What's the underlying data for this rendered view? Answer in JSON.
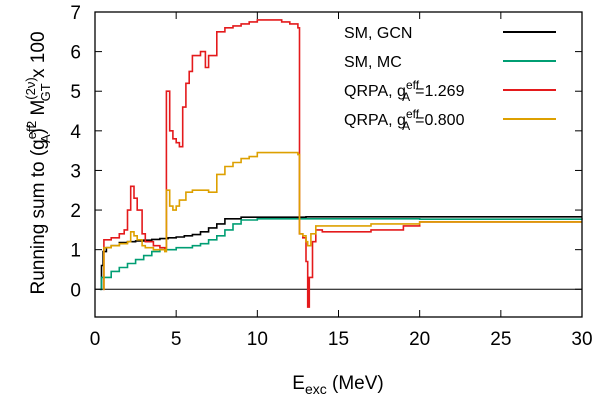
{
  "chart_data": {
    "type": "line",
    "xlabel": {
      "main": "E",
      "sub": "exc",
      "unit": " (MeV)"
    },
    "ylabel": {
      "prefix": "Running sum to (g",
      "g_sup": "eff",
      "g_sub": "A",
      "mid": ")",
      "pow": "2",
      "m_main": " M",
      "m_sup": "(2ν)",
      "m_sub": "GT",
      "suffix": " x 100"
    },
    "xlim": [
      0,
      30
    ],
    "ylim": [
      -0.7,
      7
    ],
    "xticks": [
      0,
      5,
      10,
      15,
      20,
      25,
      30
    ],
    "yticks": [
      0,
      1,
      2,
      3,
      4,
      5,
      6,
      7
    ],
    "zero_line": true,
    "legend_position": "top-right",
    "series": [
      {
        "name": "SM, GCN",
        "legend": {
          "main": "SM, GCN"
        },
        "color": "#000000",
        "points": [
          [
            0.3,
            0
          ],
          [
            0.4,
            0.6
          ],
          [
            0.5,
            0.95
          ],
          [
            0.7,
            1.05
          ],
          [
            1.0,
            1.1
          ],
          [
            1.5,
            1.18
          ],
          [
            2.0,
            1.2
          ],
          [
            2.5,
            1.22
          ],
          [
            3.0,
            1.24
          ],
          [
            3.5,
            1.26
          ],
          [
            4.0,
            1.28
          ],
          [
            4.5,
            1.3
          ],
          [
            5.0,
            1.32
          ],
          [
            5.5,
            1.35
          ],
          [
            6.0,
            1.38
          ],
          [
            6.5,
            1.45
          ],
          [
            7.0,
            1.55
          ],
          [
            7.5,
            1.65
          ],
          [
            8.0,
            1.78
          ],
          [
            9.0,
            1.82
          ],
          [
            12.5,
            1.82
          ],
          [
            13.0,
            1.83
          ],
          [
            16.0,
            1.83
          ],
          [
            20.0,
            1.83
          ],
          [
            30.0,
            1.83
          ]
        ]
      },
      {
        "name": "SM, MC",
        "legend": {
          "main": "SM, MC"
        },
        "color": "#009e73",
        "points": [
          [
            0.3,
            0
          ],
          [
            0.4,
            0.3
          ],
          [
            1.0,
            0.45
          ],
          [
            1.5,
            0.55
          ],
          [
            2.0,
            0.65
          ],
          [
            2.5,
            0.75
          ],
          [
            3.0,
            0.85
          ],
          [
            3.5,
            0.95
          ],
          [
            4.0,
            1.0
          ],
          [
            5.0,
            1.05
          ],
          [
            6.0,
            1.1
          ],
          [
            6.5,
            1.15
          ],
          [
            7.0,
            1.25
          ],
          [
            7.5,
            1.35
          ],
          [
            8.0,
            1.5
          ],
          [
            8.5,
            1.65
          ],
          [
            9.0,
            1.75
          ],
          [
            10.0,
            1.78
          ],
          [
            12.5,
            1.78
          ],
          [
            13.0,
            1.78
          ],
          [
            20.0,
            1.77
          ],
          [
            30.0,
            1.76
          ]
        ]
      },
      {
        "name": "QRPA, gAeff=1.269",
        "legend": {
          "main": "QRPA, g",
          "sup": "eff",
          "sub": "A",
          "tail": "=1.269"
        },
        "color": "#e41a1c",
        "points": [
          [
            0.5,
            0
          ],
          [
            0.55,
            1.25
          ],
          [
            1.0,
            1.3
          ],
          [
            1.5,
            1.4
          ],
          [
            1.8,
            1.5
          ],
          [
            2.0,
            2.0
          ],
          [
            2.2,
            2.6
          ],
          [
            2.4,
            2.3
          ],
          [
            2.6,
            2.0
          ],
          [
            2.9,
            1.4
          ],
          [
            3.1,
            1.2
          ],
          [
            3.6,
            1.1
          ],
          [
            4.0,
            1.05
          ],
          [
            4.3,
            1.0
          ],
          [
            4.4,
            5.0
          ],
          [
            4.6,
            4.0
          ],
          [
            4.8,
            3.8
          ],
          [
            5.0,
            3.7
          ],
          [
            5.2,
            3.6
          ],
          [
            5.4,
            4.6
          ],
          [
            5.6,
            5.2
          ],
          [
            5.8,
            5.5
          ],
          [
            6.0,
            5.9
          ],
          [
            6.5,
            6.0
          ],
          [
            6.8,
            5.6
          ],
          [
            7.0,
            5.9
          ],
          [
            7.5,
            6.5
          ],
          [
            8.0,
            6.6
          ],
          [
            8.5,
            6.65
          ],
          [
            9.0,
            6.7
          ],
          [
            9.5,
            6.75
          ],
          [
            10.0,
            6.8
          ],
          [
            10.5,
            6.8
          ],
          [
            11.0,
            6.8
          ],
          [
            11.5,
            6.75
          ],
          [
            12.0,
            6.7
          ],
          [
            12.5,
            6.6
          ],
          [
            12.6,
            1.4
          ],
          [
            12.8,
            1.3
          ],
          [
            13.0,
            0.7
          ],
          [
            13.1,
            -0.45
          ],
          [
            13.2,
            0.3
          ],
          [
            13.4,
            1.2
          ],
          [
            13.6,
            1.5
          ],
          [
            14.0,
            1.45
          ],
          [
            15.0,
            1.45
          ],
          [
            17.0,
            1.5
          ],
          [
            19.0,
            1.6
          ],
          [
            20.0,
            1.7
          ],
          [
            25.0,
            1.7
          ],
          [
            30.0,
            1.7
          ]
        ]
      },
      {
        "name": "QRPA, gAeff=0.800",
        "legend": {
          "main": "QRPA, g",
          "sup": "eff",
          "sub": "A",
          "tail": "=0.800"
        },
        "color": "#dda000",
        "points": [
          [
            0.5,
            0
          ],
          [
            0.55,
            1.05
          ],
          [
            1.0,
            1.1
          ],
          [
            1.5,
            1.15
          ],
          [
            2.0,
            1.2
          ],
          [
            2.2,
            1.45
          ],
          [
            2.4,
            1.35
          ],
          [
            2.6,
            1.25
          ],
          [
            2.9,
            1.1
          ],
          [
            3.1,
            1.05
          ],
          [
            3.6,
            1.0
          ],
          [
            4.0,
            1.0
          ],
          [
            4.3,
            0.95
          ],
          [
            4.4,
            2.5
          ],
          [
            4.6,
            2.1
          ],
          [
            4.8,
            2.0
          ],
          [
            5.0,
            2.1
          ],
          [
            5.2,
            2.25
          ],
          [
            5.6,
            2.45
          ],
          [
            6.0,
            2.5
          ],
          [
            6.5,
            2.5
          ],
          [
            7.0,
            2.45
          ],
          [
            7.5,
            2.9
          ],
          [
            8.0,
            3.1
          ],
          [
            8.5,
            3.2
          ],
          [
            9.0,
            3.3
          ],
          [
            9.5,
            3.35
          ],
          [
            10.0,
            3.45
          ],
          [
            11.0,
            3.45
          ],
          [
            12.0,
            3.45
          ],
          [
            12.5,
            3.4
          ],
          [
            12.6,
            1.4
          ],
          [
            12.8,
            1.35
          ],
          [
            13.0,
            1.2
          ],
          [
            13.1,
            1.1
          ],
          [
            13.3,
            1.4
          ],
          [
            13.6,
            1.6
          ],
          [
            14.0,
            1.6
          ],
          [
            17.0,
            1.65
          ],
          [
            20.0,
            1.7
          ],
          [
            25.0,
            1.7
          ],
          [
            30.0,
            1.7
          ]
        ]
      }
    ]
  }
}
